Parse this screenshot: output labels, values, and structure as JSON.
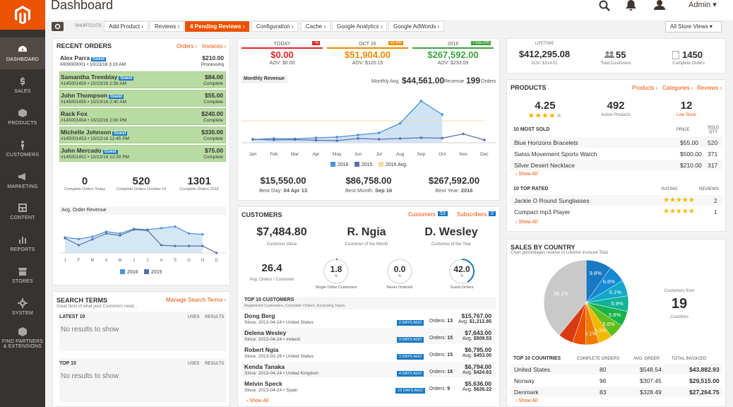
{
  "header": {
    "title": "Dashboard",
    "user": "Admin ▾"
  },
  "nav": [
    {
      "label": "DASHBOARD",
      "icon": "speedometer-icon"
    },
    {
      "label": "SALES",
      "icon": "dollar-icon"
    },
    {
      "label": "PRODUCTS",
      "icon": "cube-icon"
    },
    {
      "label": "CUSTOMERS",
      "icon": "person-icon"
    },
    {
      "label": "MARKETING",
      "icon": "megaphone-icon"
    },
    {
      "label": "CONTENT",
      "icon": "layout-icon"
    },
    {
      "label": "REPORTS",
      "icon": "bar-chart-icon"
    },
    {
      "label": "STORES",
      "icon": "store-icon"
    },
    {
      "label": "SYSTEM",
      "icon": "gear-icon"
    },
    {
      "label": "FIND PARTNERS & EXTENSIONS",
      "icon": "box-icon"
    }
  ],
  "shortcuts": {
    "label": "SHORTCUTS:",
    "items": [
      "Add Product ›",
      "Reviews ›",
      "4 Pending Reviews ›",
      "Configuration ›",
      "Cache ›",
      "Google Analytics ›",
      "Google AdWords ›"
    ],
    "store": "All Store Views ▾"
  },
  "recent_orders": {
    "title": "RECENT ORDERS",
    "links": [
      "Orders ›",
      "Invoices ›"
    ],
    "rows": [
      {
        "name": "Alex Parra",
        "tag": "Guest",
        "meta": "#000000001 • 10/23/16 3:19 AM",
        "total": "$210.00",
        "status": "Processing",
        "hl": false
      },
      {
        "name": "Samantha Tremblay",
        "tag": "Guest",
        "meta": "#145001456 • 10/23/16 2:56 AM",
        "total": "$84.00",
        "status": "Complete",
        "hl": true
      },
      {
        "name": "John Thompson",
        "tag": "Guest",
        "meta": "#145001455 • 10/23/16 2:40 AM",
        "total": "$55.00",
        "status": "Complete",
        "hl": true
      },
      {
        "name": "Rack Fox",
        "tag": "",
        "meta": "#145001454 • 10/22/16 2:00 PM",
        "total": "$240.00",
        "status": "Complete",
        "hl": true
      },
      {
        "name": "Michelle Johnson",
        "tag": "Guest",
        "meta": "#145001453 • 10/22/16 12:45 PM",
        "total": "$330.00",
        "status": "Complete",
        "hl": true
      },
      {
        "name": "John Mercado",
        "tag": "Guest",
        "meta": "#145001452 • 10/22/16 12:30 PM",
        "total": "$75.00",
        "status": "Complete",
        "hl": true
      }
    ],
    "stats": [
      {
        "v": "0",
        "l": "Complete Orders Today"
      },
      {
        "v": "520",
        "l": "Complete Orders October 16"
      },
      {
        "v": "1301",
        "l": "Complete Orders 2016"
      }
    ],
    "aov": {
      "title": "Avg. Order Revenue",
      "months": [
        "J",
        "F",
        "M",
        "A",
        "M",
        "J",
        "J",
        "A",
        "S",
        "O",
        "N",
        "D"
      ],
      "legend": [
        "2016",
        "2015"
      ],
      "y2016": [
        40,
        36,
        42,
        55,
        50,
        62,
        60,
        64,
        68,
        50,
        48
      ],
      "y2015": [
        38,
        20,
        35,
        50,
        45,
        60,
        58,
        20,
        18,
        18,
        18,
        0
      ]
    }
  },
  "revenue": {
    "cols": [
      {
        "label": "TODAY",
        "badge": "-%",
        "value": "$0.00",
        "aov": "AOV: $0.00",
        "color": "#e22626"
      },
      {
        "label": "OCT 16",
        "badge": "59.8%",
        "value": "$51,904.00",
        "aov": "AOV: $120.15",
        "color": "#eb8a00"
      },
      {
        "label": "2016",
        "badge": "+155.0%",
        "value": "$267,592.00",
        "aov": "AOV: $233.09",
        "color": "#3ca33c"
      }
    ],
    "monthly_title": "Monthly Revenue",
    "avg_label": "Monthly Avg.",
    "avg_value": "$44,561.00",
    "avg_suffix": "Revenue",
    "orders": "199",
    "orders_label": "Orders",
    "months": [
      "Jan",
      "Feb",
      "Mar",
      "Apr",
      "May",
      "Jun",
      "Jul",
      "Aug",
      "Sep",
      "Oct",
      "Nov",
      "Dec"
    ],
    "legend": [
      "2016",
      "2015",
      "2016 Avg."
    ],
    "y2016": [
      9,
      12,
      11,
      14,
      16,
      22,
      28,
      55,
      118,
      80
    ],
    "y2015": [
      10,
      8,
      9,
      7,
      6,
      12,
      10,
      12,
      14,
      13,
      25,
      8
    ],
    "best": [
      {
        "v": "$15,550.00",
        "l": "Best Day:",
        "d": "04 Apr 13"
      },
      {
        "v": "$86,758.00",
        "l": "Best Month:",
        "d": "Sep 16"
      },
      {
        "v": "$267,592.00",
        "l": "Best Year:",
        "d": "2016"
      }
    ]
  },
  "lifetime": {
    "label": "LIFETIME",
    "value": "$412,295.08",
    "aov": "AOV: $314.01",
    "customers": "55",
    "customers_label": "Total Customers",
    "orders": "1450",
    "orders_label": "Complete Orders"
  },
  "products": {
    "title": "PRODUCTS",
    "links": [
      "Products ›",
      "Categories ›",
      "Reviews ›"
    ],
    "rating": "4.25",
    "active": "492",
    "active_label": "Active Products",
    "low": "12",
    "low_label": "Low Stock",
    "most_sold_title": "10 MOST SOLD",
    "price_h": "PRICE",
    "qty_h": "SOLD QTY",
    "sold": [
      {
        "n": "Blue Horizons Bracelets",
        "p": "$55.00",
        "q": "520"
      },
      {
        "n": "Swiss Movement Sports Watch",
        "p": "$500.00",
        "q": "371"
      },
      {
        "n": "Silver Desert Necklace",
        "p": "$210.00",
        "q": "317"
      }
    ],
    "show_all": "› Show All",
    "top_rated_title": "10 TOP RATED",
    "rating_h": "RATING",
    "reviews_h": "REVIEWS",
    "rated": [
      {
        "n": "Jackie O Round Sunglasses",
        "r": "2"
      },
      {
        "n": "Compact mp3 Player",
        "r": "1"
      }
    ]
  },
  "customers": {
    "title": "CUSTOMERS",
    "link1": "Customers",
    "link1_count": "53",
    "link2": "Subscribers",
    "link2_count": "0",
    "value": "$7,484.80",
    "value_label": "Customer Value",
    "month": "R. Ngia",
    "month_label": "Customer of the Month",
    "year": "D. Wesley",
    "year_label": "Customer of the Year",
    "avg": "26.4",
    "avg_label": "Avg. Orders / Customer",
    "rings": [
      {
        "v": "1.8",
        "l": "Single Order Customers",
        "p": 0.018
      },
      {
        "v": "0.0",
        "l": "Never Ordered",
        "p": 0
      },
      {
        "v": "42.0",
        "l": "Guest Orders",
        "p": 0.42
      }
    ],
    "pct": "%",
    "top_title": "TOP 10 CUSTOMERS",
    "top_sub": "Registered Customers, Complete Orders, Excluding Taxes.",
    "orders_prefix": "Orders:",
    "avg_prefix": "Avg.",
    "top": [
      {
        "n": "Dong Berg",
        "s": "Since: 2013-04-24 • United States",
        "d": "2 DAYS AGO",
        "o": "13",
        "t": "$15,767.00",
        "a": "$1,212.85"
      },
      {
        "n": "Delena Wesley",
        "s": "Since: 2013-04-24 • Ireland",
        "d": "3 DAYS AGO",
        "o": "15",
        "t": "$7,643.00",
        "a": "$509.53"
      },
      {
        "n": "Robert Ngia",
        "s": "Since: 2013-03-28 • United States",
        "d": "3 DAYS AGO",
        "o": "15",
        "t": "$6,795.00",
        "a": "$453.00"
      },
      {
        "n": "Kenda Tanaka",
        "s": "Since: 2013-04-24 • United Kingdom",
        "d": "4 DAYS AGO",
        "o": "16",
        "t": "$6,794.00",
        "a": "$424.63"
      },
      {
        "n": "Melvin Speck",
        "s": "Since: 2013-04-24 • Spain",
        "d": "10 DAYS AGO",
        "o": "9",
        "t": "$5,636.00",
        "a": "$626.22"
      }
    ],
    "show_all": "› Show All"
  },
  "search": {
    "title": "SEARCH TERMS",
    "link": "Manage Search Terms ›",
    "sub": "Great hints of what your Customers need...",
    "latest": "LATEST 10",
    "top": "TOP 10",
    "uses": "USES",
    "results": "RESULTS",
    "empty": "No results to show"
  },
  "countries": {
    "title": "SALES BY COUNTRY",
    "sub": "Chart percentages relative to Lifetime Invoiced Total",
    "from": "Customers from",
    "count": "19",
    "count_label": "Countries",
    "slices": [
      {
        "v": 9.8,
        "l": "9.8%",
        "c": "#1979c3"
      },
      {
        "v": 6.6,
        "l": "6.6%",
        "c": "#1589d1"
      },
      {
        "v": 6.1,
        "l": "6.1%",
        "c": "#12a8c9"
      },
      {
        "v": 5.9,
        "l": "5.9%",
        "c": "#10b39a"
      },
      {
        "v": 5.8,
        "l": "5.8%",
        "c": "#17b34a"
      },
      {
        "v": 5.6,
        "l": "5.6%",
        "c": "#5fbf1d"
      },
      {
        "v": 5.3,
        "l": "5.3%",
        "c": "#f3b800"
      },
      {
        "v": 5.1,
        "l": "5.1%",
        "c": "#ee7d00"
      },
      {
        "v": 5.0,
        "l": "",
        "c": "#eb5202"
      },
      {
        "v": 5.7,
        "l": "",
        "c": "#d93a12"
      },
      {
        "v": 39.1,
        "l": "39.1%",
        "c": "#c9c9c9"
      }
    ],
    "table_title": "TOP 10 COUNTRIES",
    "h": [
      "COMPLETE ORDERS",
      "AVG. ORDER",
      "TOTAL INVOICED"
    ],
    "rows": [
      {
        "c": "United States",
        "o": "80",
        "a": "$548.54",
        "t": "$43,882.93"
      },
      {
        "c": "Norway",
        "o": "96",
        "a": "$307.45",
        "t": "$29,515.00"
      },
      {
        "c": "Denmark",
        "o": "83",
        "a": "$328.49",
        "t": "$27,264.75"
      }
    ],
    "show_all": "› Show All"
  }
}
